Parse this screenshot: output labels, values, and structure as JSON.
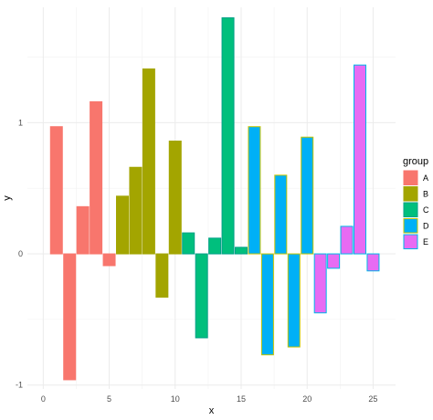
{
  "chart_data": {
    "type": "bar",
    "xlabel": "x",
    "ylabel": "y",
    "xlim": [
      -1.2,
      26.7
    ],
    "ylim": [
      -1.03,
      1.88
    ],
    "x_ticks": [
      0,
      5,
      10,
      15,
      20,
      25
    ],
    "y_ticks": [
      -1,
      0,
      1
    ],
    "grid": true,
    "legend": {
      "title": "group",
      "position": "right",
      "entries": [
        "A",
        "B",
        "C",
        "D",
        "E"
      ]
    },
    "series": [
      {
        "name": "A",
        "fill": "#F8766D",
        "border": "#F8766D",
        "x": [
          1,
          2,
          3,
          4,
          5
        ],
        "values": [
          0.97,
          -0.96,
          0.36,
          1.16,
          -0.09
        ]
      },
      {
        "name": "B",
        "fill": "#A3A500",
        "border": "#A3A500",
        "x": [
          6,
          7,
          8,
          9,
          10
        ],
        "values": [
          0.44,
          0.66,
          1.41,
          -0.33,
          0.86
        ]
      },
      {
        "name": "C",
        "fill": "#00BF7D",
        "border": "#00A087",
        "x": [
          11,
          12,
          13,
          14,
          15
        ],
        "values": [
          0.16,
          -0.64,
          0.12,
          1.8,
          0.05
        ]
      },
      {
        "name": "D",
        "fill": "#00B0F6",
        "border": "#C7C400",
        "x": [
          16,
          17,
          18,
          19,
          20
        ],
        "values": [
          0.97,
          -0.77,
          0.6,
          -0.71,
          0.89
        ]
      },
      {
        "name": "E",
        "fill": "#E76BF3",
        "border": "#00B8E7",
        "x": [
          21,
          22,
          23,
          24,
          25
        ],
        "values": [
          -0.45,
          -0.11,
          0.21,
          1.44,
          -0.13
        ]
      }
    ]
  }
}
